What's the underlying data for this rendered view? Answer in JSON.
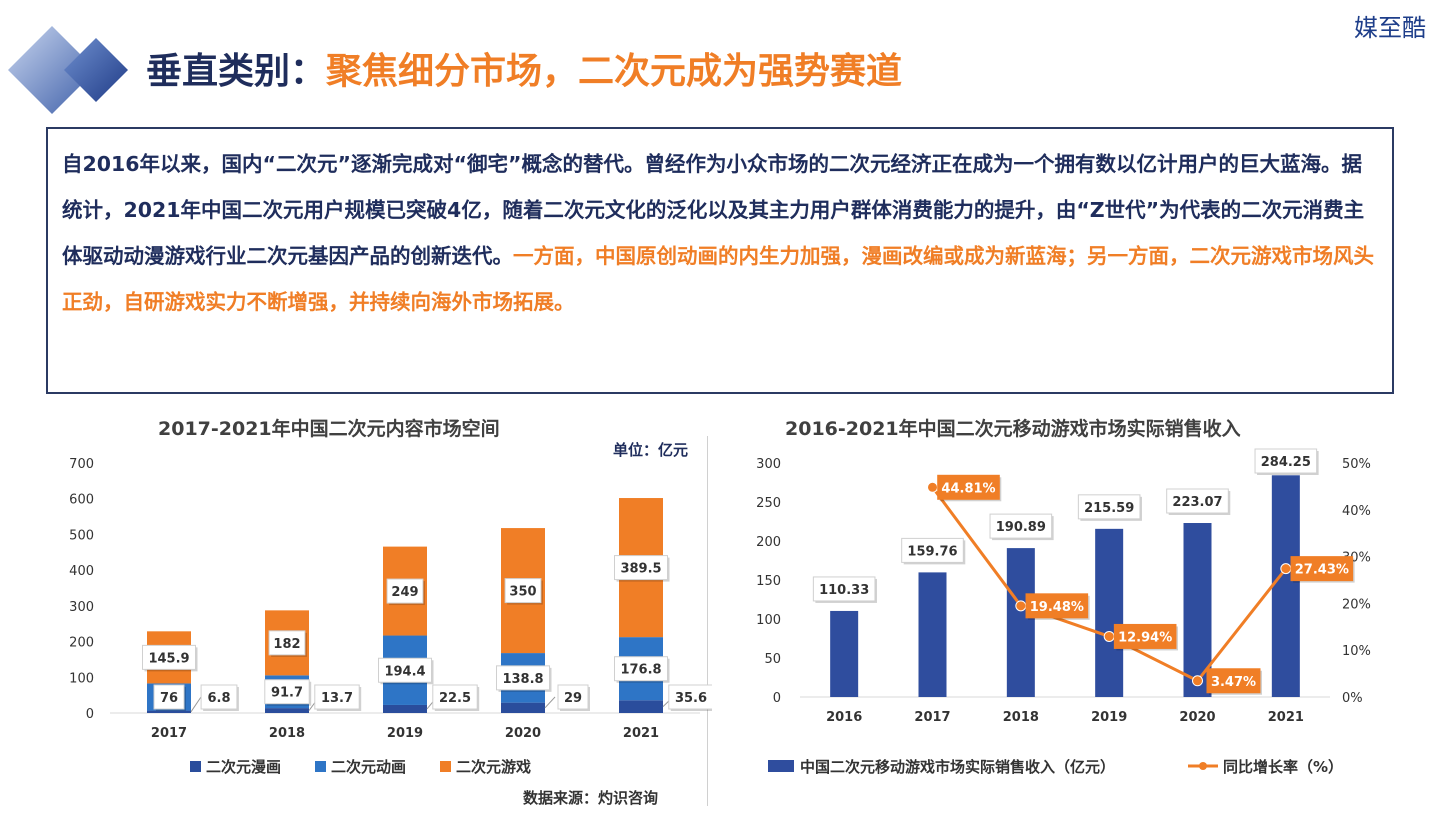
{
  "header": {
    "title_prefix": "垂直类别：",
    "title_main": "聚焦细分市场，二次元成为强势赛道",
    "brand": "媒至酷"
  },
  "intro": {
    "text_dark": "自2016年以来，国内“二次元”逐渐完成对“御宅”概念的替代。曾经作为小众市场的二次元经济正在成为一个拥有数以亿计用户的巨大蓝海。据统计，2021年中国二次元用户规模已突破4亿，随着二次元文化的泛化以及其主力用户群体消费能力的提升，由“Z世代”为代表的二次元消费主体驱动动漫游戏行业二次元基因产品的创新迭代。",
    "text_accent": "一方面，中国原创动画的内生力加强，漫画改编或成为新蓝海；另一方面，二次元游戏市场风头正劲，自研游戏实力不断增强，并持续向海外市场拓展。"
  },
  "colors": {
    "dark_navy": "#1f2d5c",
    "accent_orange": "#f07e26",
    "series_dark_blue": "#2a4d9c",
    "series_mid_blue": "#2e75c6",
    "series_orange": "#f07e26",
    "bar_blue": "#2f4d9e",
    "line_orange": "#f07e26"
  },
  "chart_data": [
    {
      "type": "bar",
      "stacked": true,
      "title": "2017-2021年中国二次元内容市场空间",
      "unit_label": "单位：亿元",
      "source": "数据来源：灼识咨询",
      "categories": [
        "2017",
        "2018",
        "2019",
        "2020",
        "2021"
      ],
      "ylim": [
        0,
        700
      ],
      "yticks": [
        0,
        100,
        200,
        300,
        400,
        500,
        600,
        700
      ],
      "series": [
        {
          "name": "二次元漫画",
          "values": [
            6.8,
            13.7,
            22.5,
            29,
            35.6
          ],
          "labels": [
            "6.8",
            "13.7",
            "22.5",
            "29",
            "35.6"
          ]
        },
        {
          "name": "二次元动画",
          "values": [
            76,
            91.7,
            194.4,
            138.8,
            176.8
          ],
          "labels": [
            "76",
            "91.7",
            "194.4",
            "138.8",
            "176.8"
          ]
        },
        {
          "name": "二次元游戏",
          "values": [
            145.9,
            182,
            249,
            350,
            389.5
          ],
          "labels": [
            "145.9",
            "182",
            "249",
            "350",
            "389.5"
          ]
        }
      ],
      "legend_position": "bottom",
      "grid": false
    },
    {
      "type": "bar",
      "title": "2016-2021年中国二次元移动游戏市场实际销售收入",
      "categories": [
        "2016",
        "2017",
        "2018",
        "2019",
        "2020",
        "2021"
      ],
      "ylim": [
        0,
        300
      ],
      "yticks": [
        0,
        50,
        100,
        150,
        200,
        250,
        300
      ],
      "y2lim": [
        0,
        50
      ],
      "y2ticks": [
        "0%",
        "10%",
        "20%",
        "30%",
        "40%",
        "50%"
      ],
      "series": [
        {
          "name": "中国二次元移动游戏市场实际销售收入（亿元）",
          "type": "bar",
          "values": [
            110.33,
            159.76,
            190.89,
            215.59,
            223.07,
            284.25
          ],
          "labels": [
            "110.33",
            "159.76",
            "190.89",
            "215.59",
            "223.07",
            "284.25"
          ]
        },
        {
          "name": "同比增长率（%）",
          "type": "line",
          "axis": "right",
          "values": [
            null,
            44.81,
            19.48,
            12.94,
            3.47,
            27.43
          ],
          "labels": [
            "",
            "44.81%",
            "19.48%",
            "12.94%",
            "3.47%",
            "27.43%"
          ]
        }
      ],
      "legend_position": "bottom",
      "grid": false
    }
  ]
}
